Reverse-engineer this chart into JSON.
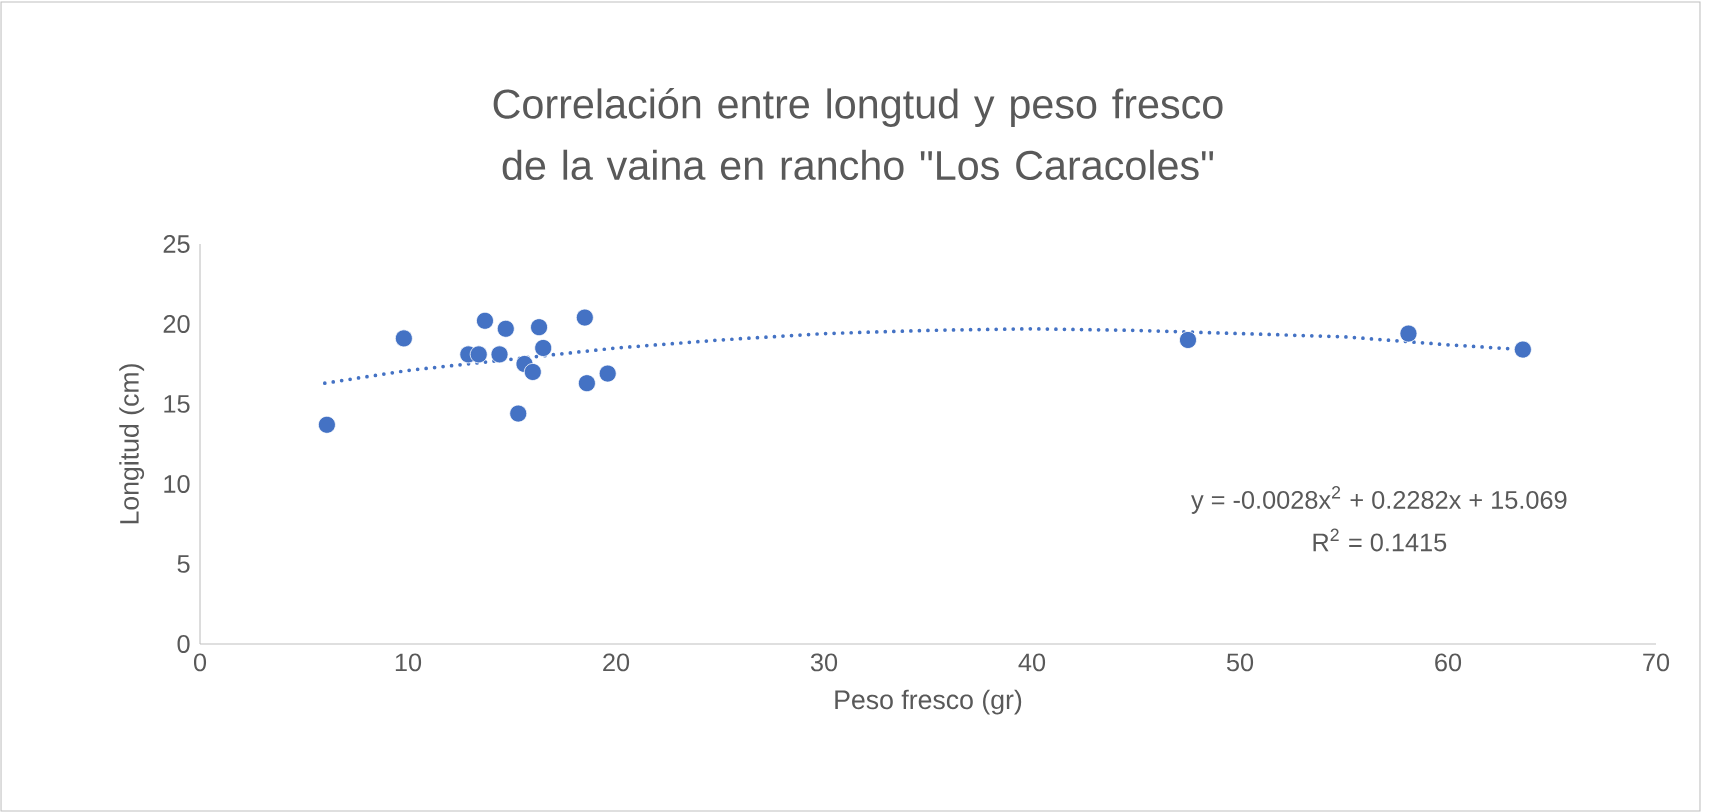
{
  "chart_data": {
    "type": "scatter",
    "title": "Correlación entre longtud y peso fresco de la vaina en rancho \"Los Caracoles\"",
    "xlabel": "Peso fresco (gr)",
    "ylabel": "Longitud (cm)",
    "xlim": [
      0,
      70
    ],
    "xticks": [
      0,
      10,
      20,
      30,
      40,
      50,
      60,
      70
    ],
    "ylim": [
      0,
      25
    ],
    "yticks": [
      0,
      5,
      10,
      15,
      20,
      25
    ],
    "grid": false,
    "series": [
      {
        "marker": "circle",
        "color": "#4472c4",
        "x": [
          6.1,
          9.8,
          12.9,
          13.4,
          13.7,
          14.4,
          14.7,
          15.3,
          15.6,
          16.0,
          16.3,
          16.5,
          18.5,
          18.6,
          19.6,
          47.5,
          58.1,
          63.6
        ],
        "values": [
          13.7,
          19.1,
          18.1,
          18.1,
          20.2,
          18.1,
          19.7,
          14.4,
          17.5,
          17.0,
          19.8,
          18.5,
          20.4,
          16.3,
          16.9,
          19.0,
          19.4,
          18.4
        ]
      },
      {
        "type": "line",
        "marker": "none",
        "color": "#4472c4",
        "line_style": "dotted",
        "x": [
          6,
          10,
          15,
          20,
          25,
          30,
          35,
          40,
          45,
          50,
          55,
          60,
          63.6
        ],
        "values": [
          16.3,
          17.1,
          17.8,
          18.5,
          19.0,
          19.4,
          19.6,
          19.7,
          19.6,
          19.4,
          19.2,
          18.7,
          18.4
        ]
      }
    ],
    "annotations": [
      {
        "text": "y = -0.0028x$^{2}$ + 0.2282x + 15.069"
      },
      {
        "text": "R$^{2}$ = 0.1415"
      }
    ]
  }
}
